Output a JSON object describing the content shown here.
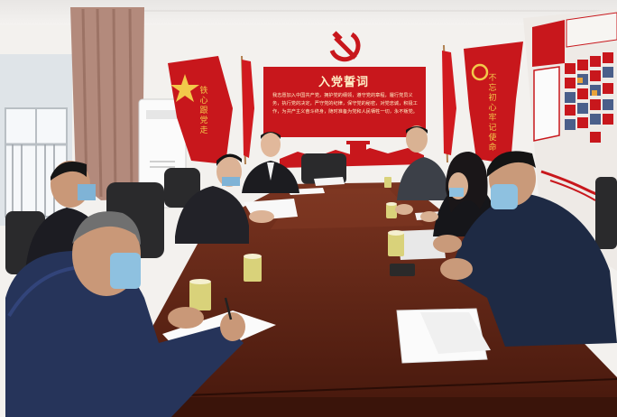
{
  "wall_panel": {
    "title": "入党誓词",
    "oath_text": "我志愿加入中国共产党，拥护党的纲领，遵守党的章程，履行党员义务，执行党的决定，严守党的纪律，保守党的秘密，对党忠诚，积极工作，为共产主义奋斗终身，随时准备为党和人民牺牲一切，永不叛党。"
  },
  "left_banner": {
    "text": "铁心跟党走"
  },
  "right_banner": {
    "text": "不忘初心牢记使命"
  },
  "colors": {
    "wall": "#f3f1ee",
    "party_red": "#c8171c",
    "gold": "#f2c84a",
    "table": "#6b2b1a",
    "curtain": "#b08070"
  }
}
